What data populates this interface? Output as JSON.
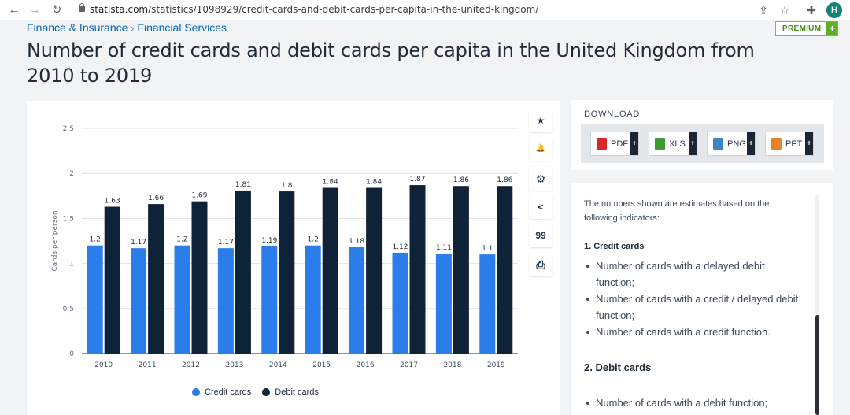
{
  "browser": {
    "url_host": "statista.com",
    "url_path": "/statistics/1098929/credit-cards-and-debit-cards-per-capita-in-the-united-kingdom/",
    "avatar_letter": "H"
  },
  "breadcrumb": {
    "items": [
      "Finance & Insurance",
      "Financial Services"
    ],
    "separator": "›"
  },
  "premium": {
    "label": "PREMIUM",
    "plus": "+"
  },
  "title": "Number of credit cards and debit cards per capita in the United Kingdom from 2010 to 2019",
  "chart_data": {
    "type": "bar",
    "categories": [
      "2010",
      "2011",
      "2012",
      "2013",
      "2014",
      "2015",
      "2016",
      "2017",
      "2018",
      "2019"
    ],
    "series": [
      {
        "name": "Credit cards",
        "color": "#2b7de9",
        "values": [
          1.2,
          1.17,
          1.2,
          1.17,
          1.19,
          1.2,
          1.18,
          1.12,
          1.11,
          1.1
        ]
      },
      {
        "name": "Debit cards",
        "color": "#0f2338",
        "values": [
          1.63,
          1.66,
          1.69,
          1.81,
          1.8,
          1.84,
          1.84,
          1.87,
          1.86,
          1.86
        ]
      }
    ],
    "ylabel": "Cards per person",
    "ylim": [
      0,
      2.5
    ],
    "yticks": [
      "0",
      "0.5",
      "1",
      "1.5",
      "2",
      "2.5"
    ],
    "ytick_values": [
      0,
      0.5,
      1,
      1.5,
      2,
      2.5
    ],
    "grid": true,
    "legend_position": "bottom"
  },
  "tools": [
    {
      "icon": "star-icon",
      "glyph": "★"
    },
    {
      "icon": "bell-icon",
      "glyph": "🔔"
    },
    {
      "icon": "gear-icon",
      "glyph": "⚙"
    },
    {
      "icon": "share-icon",
      "glyph": "<"
    },
    {
      "icon": "quote-icon",
      "glyph": "99"
    },
    {
      "icon": "print-icon",
      "glyph": "⎙"
    }
  ],
  "download": {
    "title": "DOWNLOAD",
    "buttons": [
      {
        "label": "PDF",
        "icon": "pdf-file-icon",
        "color": "#d9262c"
      },
      {
        "label": "XLS",
        "icon": "xls-file-icon",
        "color": "#3d9b35"
      },
      {
        "label": "PNG",
        "icon": "png-file-icon",
        "color": "#3a86c8"
      },
      {
        "label": "PPT",
        "icon": "ppt-file-icon",
        "color": "#e8852a"
      }
    ],
    "plus": "+"
  },
  "info": {
    "intro": "The numbers shown are estimates based on the following indicators:",
    "section1_title": "1. Credit cards",
    "section1_items": [
      "Number of cards with a delayed debit function;",
      "Number of cards with a credit / delayed debit function;",
      "Number of cards with a credit function."
    ],
    "section2_title": "2. Debit cards",
    "section2_items": [
      "Number of cards with a debit function;"
    ]
  }
}
